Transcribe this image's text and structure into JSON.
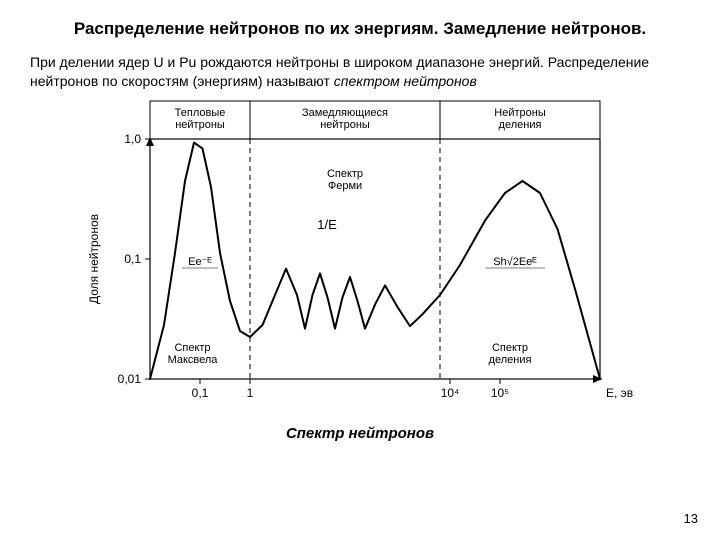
{
  "title": "Распределение нейтронов по их энергиям. Замедление нейтронов.",
  "body_plain": "При делении ядер U и Pu рождаются нейтроны в широком диапазоне энергий. Распределение нейтронов по скоростям (энергиям) называют ",
  "body_italic": "спектром нейтронов",
  "caption": "Спектр нейтронов",
  "pagenum": "13",
  "chart": {
    "type": "line",
    "background_color": "#ffffff",
    "axis_color": "#000000",
    "curve_color": "#000000",
    "curve_width": 2.0,
    "ylabel": "Доля нейтронов",
    "xlabel_right": "E, эв",
    "y_ticks": [
      "1,0",
      "0,1",
      "0,01"
    ],
    "y_tick_log": [
      0,
      -1,
      -2
    ],
    "x_ticks": [
      "0,1",
      "1",
      "10⁴",
      "10⁵"
    ],
    "x_tick_exp": [
      -1,
      0,
      4,
      5
    ],
    "x_range_exp": [
      -2,
      7
    ],
    "region_labels": [
      {
        "text": "Тепловые нейтроны",
        "col": 0
      },
      {
        "text": "Замедляющиеся нейтроны",
        "col": 1
      },
      {
        "text": "Нейтроны деления",
        "col": 2
      }
    ],
    "divider_exp": [
      0,
      3.8,
      7
    ],
    "annotations": {
      "spectrum_maxwell": "Спектр Максвела",
      "spectrum_fermi": "Спектр Ферми",
      "one_over_e": "1/E",
      "spectrum_fission": "Спектр деления",
      "formula_left": "Ee⁻ᴱ",
      "formula_right": "Sh√2Eeᴱ"
    },
    "label_fontsize": 11,
    "tick_fontsize": 12,
    "header_fontsize": 11,
    "curve_points": [
      [
        -2.0,
        -2.0
      ],
      [
        -1.72,
        -1.55
      ],
      [
        -1.5,
        -0.95
      ],
      [
        -1.3,
        -0.35
      ],
      [
        -1.12,
        -0.03
      ],
      [
        -0.95,
        -0.08
      ],
      [
        -0.78,
        -0.4
      ],
      [
        -0.6,
        -0.95
      ],
      [
        -0.4,
        -1.35
      ],
      [
        -0.2,
        -1.6
      ],
      [
        0.0,
        -1.65
      ],
      [
        0.25,
        -1.55
      ],
      [
        0.5,
        -1.3
      ],
      [
        0.72,
        -1.08
      ],
      [
        0.94,
        -1.3
      ],
      [
        1.1,
        -1.58
      ],
      [
        1.25,
        -1.3
      ],
      [
        1.4,
        -1.12
      ],
      [
        1.55,
        -1.32
      ],
      [
        1.7,
        -1.58
      ],
      [
        1.85,
        -1.32
      ],
      [
        2.0,
        -1.15
      ],
      [
        2.15,
        -1.35
      ],
      [
        2.3,
        -1.58
      ],
      [
        2.5,
        -1.38
      ],
      [
        2.7,
        -1.22
      ],
      [
        2.95,
        -1.4
      ],
      [
        3.2,
        -1.56
      ],
      [
        3.45,
        -1.46
      ],
      [
        3.8,
        -1.3
      ],
      [
        4.2,
        -1.05
      ],
      [
        4.7,
        -0.68
      ],
      [
        5.1,
        -0.45
      ],
      [
        5.45,
        -0.35
      ],
      [
        5.8,
        -0.45
      ],
      [
        6.15,
        -0.75
      ],
      [
        6.5,
        -1.25
      ],
      [
        6.8,
        -1.7
      ],
      [
        7.0,
        -2.0
      ]
    ]
  }
}
